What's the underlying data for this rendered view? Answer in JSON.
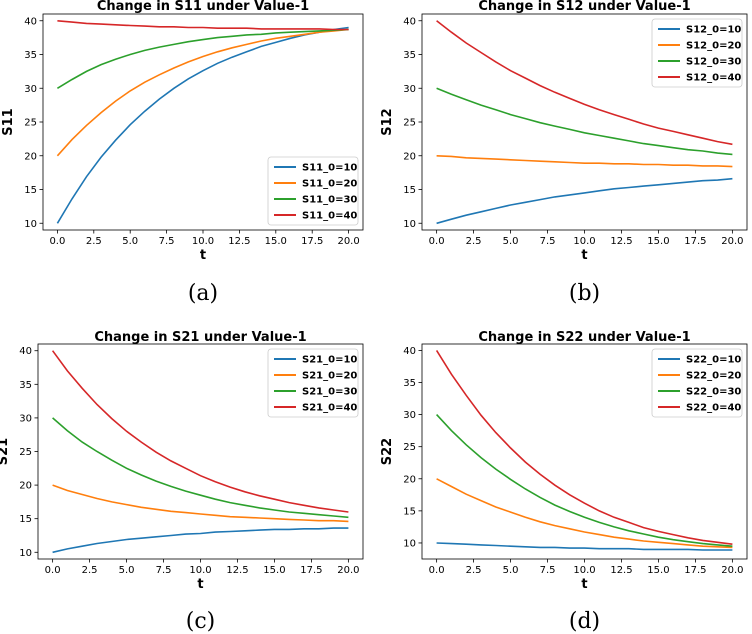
{
  "chart_data": [
    {
      "type": "line",
      "title": "Change in S11 under Value-1",
      "xlabel": "t",
      "ylabel": "S11",
      "caption": "(a)",
      "xlim": [
        0,
        20
      ],
      "ylim": [
        9,
        41
      ],
      "xticks": [
        "0.0",
        "2.5",
        "5.0",
        "7.5",
        "10.0",
        "12.5",
        "15.0",
        "17.5",
        "20.0"
      ],
      "yticks": [
        "10",
        "15",
        "20",
        "25",
        "30",
        "35",
        "40"
      ],
      "legend_position": "lower-right",
      "x": [
        0,
        1,
        2,
        3,
        4,
        5,
        6,
        7,
        8,
        9,
        10,
        11,
        12,
        13,
        14,
        15,
        16,
        17,
        18,
        19,
        20
      ],
      "series": [
        {
          "name": "S11_0=10",
          "color": "#1f77b4",
          "values": [
            10,
            13.6,
            16.9,
            19.8,
            22.3,
            24.6,
            26.6,
            28.4,
            30.0,
            31.4,
            32.6,
            33.7,
            34.6,
            35.4,
            36.2,
            36.8,
            37.4,
            37.9,
            38.3,
            38.7,
            39.0
          ]
        },
        {
          "name": "S11_0=20",
          "color": "#ff7f0e",
          "values": [
            20,
            22.4,
            24.5,
            26.4,
            28.1,
            29.6,
            30.9,
            32.0,
            33.0,
            33.9,
            34.7,
            35.4,
            36.0,
            36.5,
            37.0,
            37.4,
            37.7,
            38.0,
            38.3,
            38.5,
            38.7
          ]
        },
        {
          "name": "S11_0=30",
          "color": "#2ca02c",
          "values": [
            30,
            31.3,
            32.5,
            33.5,
            34.3,
            35.0,
            35.6,
            36.1,
            36.5,
            36.9,
            37.2,
            37.5,
            37.7,
            37.9,
            38.0,
            38.2,
            38.3,
            38.4,
            38.5,
            38.6,
            38.7
          ]
        },
        {
          "name": "S11_0=40",
          "color": "#d62728",
          "values": [
            40,
            39.8,
            39.6,
            39.5,
            39.4,
            39.3,
            39.2,
            39.1,
            39.1,
            39.0,
            39.0,
            38.9,
            38.9,
            38.9,
            38.8,
            38.8,
            38.8,
            38.8,
            38.8,
            38.7,
            38.7
          ]
        }
      ]
    },
    {
      "type": "line",
      "title": "Change in S12 under Value-1",
      "xlabel": "t",
      "ylabel": "S12",
      "caption": "(b)",
      "xlim": [
        0,
        20
      ],
      "ylim": [
        9,
        41
      ],
      "xticks": [
        "0.0",
        "2.5",
        "5.0",
        "7.5",
        "10.0",
        "12.5",
        "15.0",
        "17.5",
        "20.0"
      ],
      "yticks": [
        "10",
        "15",
        "20",
        "25",
        "30",
        "35",
        "40"
      ],
      "legend_position": "upper-right",
      "x": [
        0,
        1,
        2,
        3,
        4,
        5,
        6,
        7,
        8,
        9,
        10,
        11,
        12,
        13,
        14,
        15,
        16,
        17,
        18,
        19,
        20
      ],
      "series": [
        {
          "name": "S12_0=10",
          "color": "#1f77b4",
          "values": [
            10,
            10.6,
            11.2,
            11.7,
            12.2,
            12.7,
            13.1,
            13.5,
            13.9,
            14.2,
            14.5,
            14.8,
            15.1,
            15.3,
            15.5,
            15.7,
            15.9,
            16.1,
            16.3,
            16.4,
            16.6
          ]
        },
        {
          "name": "S12_0=20",
          "color": "#ff7f0e",
          "values": [
            20,
            19.9,
            19.7,
            19.6,
            19.5,
            19.4,
            19.3,
            19.2,
            19.1,
            19.0,
            18.9,
            18.9,
            18.8,
            18.8,
            18.7,
            18.7,
            18.6,
            18.6,
            18.5,
            18.5,
            18.4
          ]
        },
        {
          "name": "S12_0=30",
          "color": "#2ca02c",
          "values": [
            30,
            29.1,
            28.3,
            27.5,
            26.8,
            26.1,
            25.5,
            24.9,
            24.4,
            23.9,
            23.4,
            23.0,
            22.6,
            22.2,
            21.8,
            21.5,
            21.2,
            20.9,
            20.7,
            20.4,
            20.2
          ]
        },
        {
          "name": "S12_0=40",
          "color": "#d62728",
          "values": [
            40,
            38.3,
            36.7,
            35.3,
            33.9,
            32.6,
            31.5,
            30.4,
            29.4,
            28.5,
            27.6,
            26.8,
            26.1,
            25.4,
            24.7,
            24.1,
            23.6,
            23.1,
            22.6,
            22.1,
            21.7
          ]
        }
      ]
    },
    {
      "type": "line",
      "title": "Change in S21 under Value-1",
      "xlabel": "t",
      "ylabel": "S21",
      "caption": "(c)",
      "xlim": [
        0,
        20
      ],
      "ylim": [
        9,
        41
      ],
      "xticks": [
        "0.0",
        "2.5",
        "5.0",
        "7.5",
        "10.0",
        "12.5",
        "15.0",
        "17.5",
        "20.0"
      ],
      "yticks": [
        "10",
        "15",
        "20",
        "25",
        "30",
        "35",
        "40"
      ],
      "legend_position": "upper-right",
      "x": [
        0,
        1,
        2,
        3,
        4,
        5,
        6,
        7,
        8,
        9,
        10,
        11,
        12,
        13,
        14,
        15,
        16,
        17,
        18,
        19,
        20
      ],
      "series": [
        {
          "name": "S21_0=10",
          "color": "#1f77b4",
          "values": [
            10,
            10.5,
            10.9,
            11.3,
            11.6,
            11.9,
            12.1,
            12.3,
            12.5,
            12.7,
            12.8,
            13.0,
            13.1,
            13.2,
            13.3,
            13.4,
            13.4,
            13.5,
            13.5,
            13.6,
            13.6
          ]
        },
        {
          "name": "S21_0=20",
          "color": "#ff7f0e",
          "values": [
            20,
            19.2,
            18.6,
            18.0,
            17.5,
            17.1,
            16.7,
            16.4,
            16.1,
            15.9,
            15.7,
            15.5,
            15.3,
            15.2,
            15.1,
            15.0,
            14.9,
            14.8,
            14.7,
            14.7,
            14.6
          ]
        },
        {
          "name": "S21_0=30",
          "color": "#2ca02c",
          "values": [
            30,
            28.1,
            26.4,
            25.0,
            23.7,
            22.5,
            21.5,
            20.6,
            19.8,
            19.1,
            18.5,
            17.9,
            17.4,
            17.0,
            16.6,
            16.3,
            16.0,
            15.8,
            15.6,
            15.4,
            15.2
          ]
        },
        {
          "name": "S21_0=40",
          "color": "#d62728",
          "values": [
            40,
            37.0,
            34.4,
            32.0,
            29.9,
            28.0,
            26.4,
            24.9,
            23.6,
            22.5,
            21.4,
            20.5,
            19.7,
            19.0,
            18.4,
            17.9,
            17.4,
            17.0,
            16.6,
            16.3,
            16.0
          ]
        }
      ]
    },
    {
      "type": "line",
      "title": "Change in S22 under Value-1",
      "xlabel": "t",
      "ylabel": "S22",
      "caption": "(d)",
      "xlim": [
        0,
        20
      ],
      "ylim": [
        7.5,
        41
      ],
      "xticks": [
        "0.0",
        "2.5",
        "5.0",
        "7.5",
        "10.0",
        "12.5",
        "15.0",
        "17.5",
        "20.0"
      ],
      "yticks": [
        "10",
        "15",
        "20",
        "25",
        "30",
        "35",
        "40"
      ],
      "legend_position": "upper-right",
      "x": [
        0,
        1,
        2,
        3,
        4,
        5,
        6,
        7,
        8,
        9,
        10,
        11,
        12,
        13,
        14,
        15,
        16,
        17,
        18,
        19,
        20
      ],
      "series": [
        {
          "name": "S22_0=10",
          "color": "#1f77b4",
          "values": [
            10,
            9.9,
            9.8,
            9.7,
            9.6,
            9.5,
            9.4,
            9.3,
            9.3,
            9.2,
            9.2,
            9.1,
            9.1,
            9.1,
            9.0,
            9.0,
            9.0,
            9.0,
            8.9,
            8.9,
            8.9
          ]
        },
        {
          "name": "S22_0=20",
          "color": "#ff7f0e",
          "values": [
            20,
            18.8,
            17.6,
            16.6,
            15.6,
            14.8,
            14.0,
            13.3,
            12.7,
            12.2,
            11.7,
            11.3,
            10.9,
            10.6,
            10.3,
            10.1,
            9.9,
            9.7,
            9.5,
            9.4,
            9.3
          ]
        },
        {
          "name": "S22_0=30",
          "color": "#2ca02c",
          "values": [
            30,
            27.5,
            25.3,
            23.3,
            21.5,
            19.9,
            18.4,
            17.1,
            15.9,
            14.9,
            14.0,
            13.2,
            12.5,
            11.9,
            11.4,
            10.9,
            10.5,
            10.2,
            9.9,
            9.7,
            9.5
          ]
        },
        {
          "name": "S22_0=40",
          "color": "#d62728",
          "values": [
            40,
            36.3,
            33.0,
            29.9,
            27.2,
            24.8,
            22.6,
            20.7,
            19.0,
            17.5,
            16.2,
            15.0,
            14.0,
            13.2,
            12.4,
            11.8,
            11.3,
            10.8,
            10.4,
            10.1,
            9.8
          ]
        }
      ]
    }
  ]
}
